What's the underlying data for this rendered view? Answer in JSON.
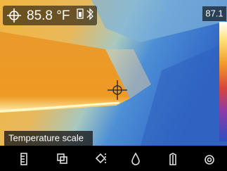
{
  "header": {
    "reading": "85.8 °F",
    "scale_max": "87.1"
  },
  "tooltip": "Temperature scale"
}
